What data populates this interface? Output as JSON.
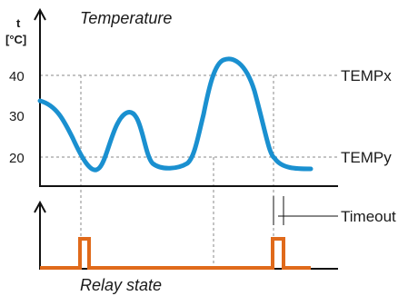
{
  "temperature_chart": {
    "title": "Temperature",
    "y_axis_symbol": "t",
    "y_axis_unit": "[°C]",
    "ticks": [
      "40",
      "30",
      "20"
    ],
    "ref_high_label": "TEMPx",
    "ref_low_label": "TEMPy",
    "curve_color": "#1a90d0"
  },
  "relay_chart": {
    "title": "Relay state",
    "timeout_label": "Timeout",
    "line_color": "#e06a1b"
  },
  "colors": {
    "axis": "#111111",
    "guide": "#888888"
  }
}
